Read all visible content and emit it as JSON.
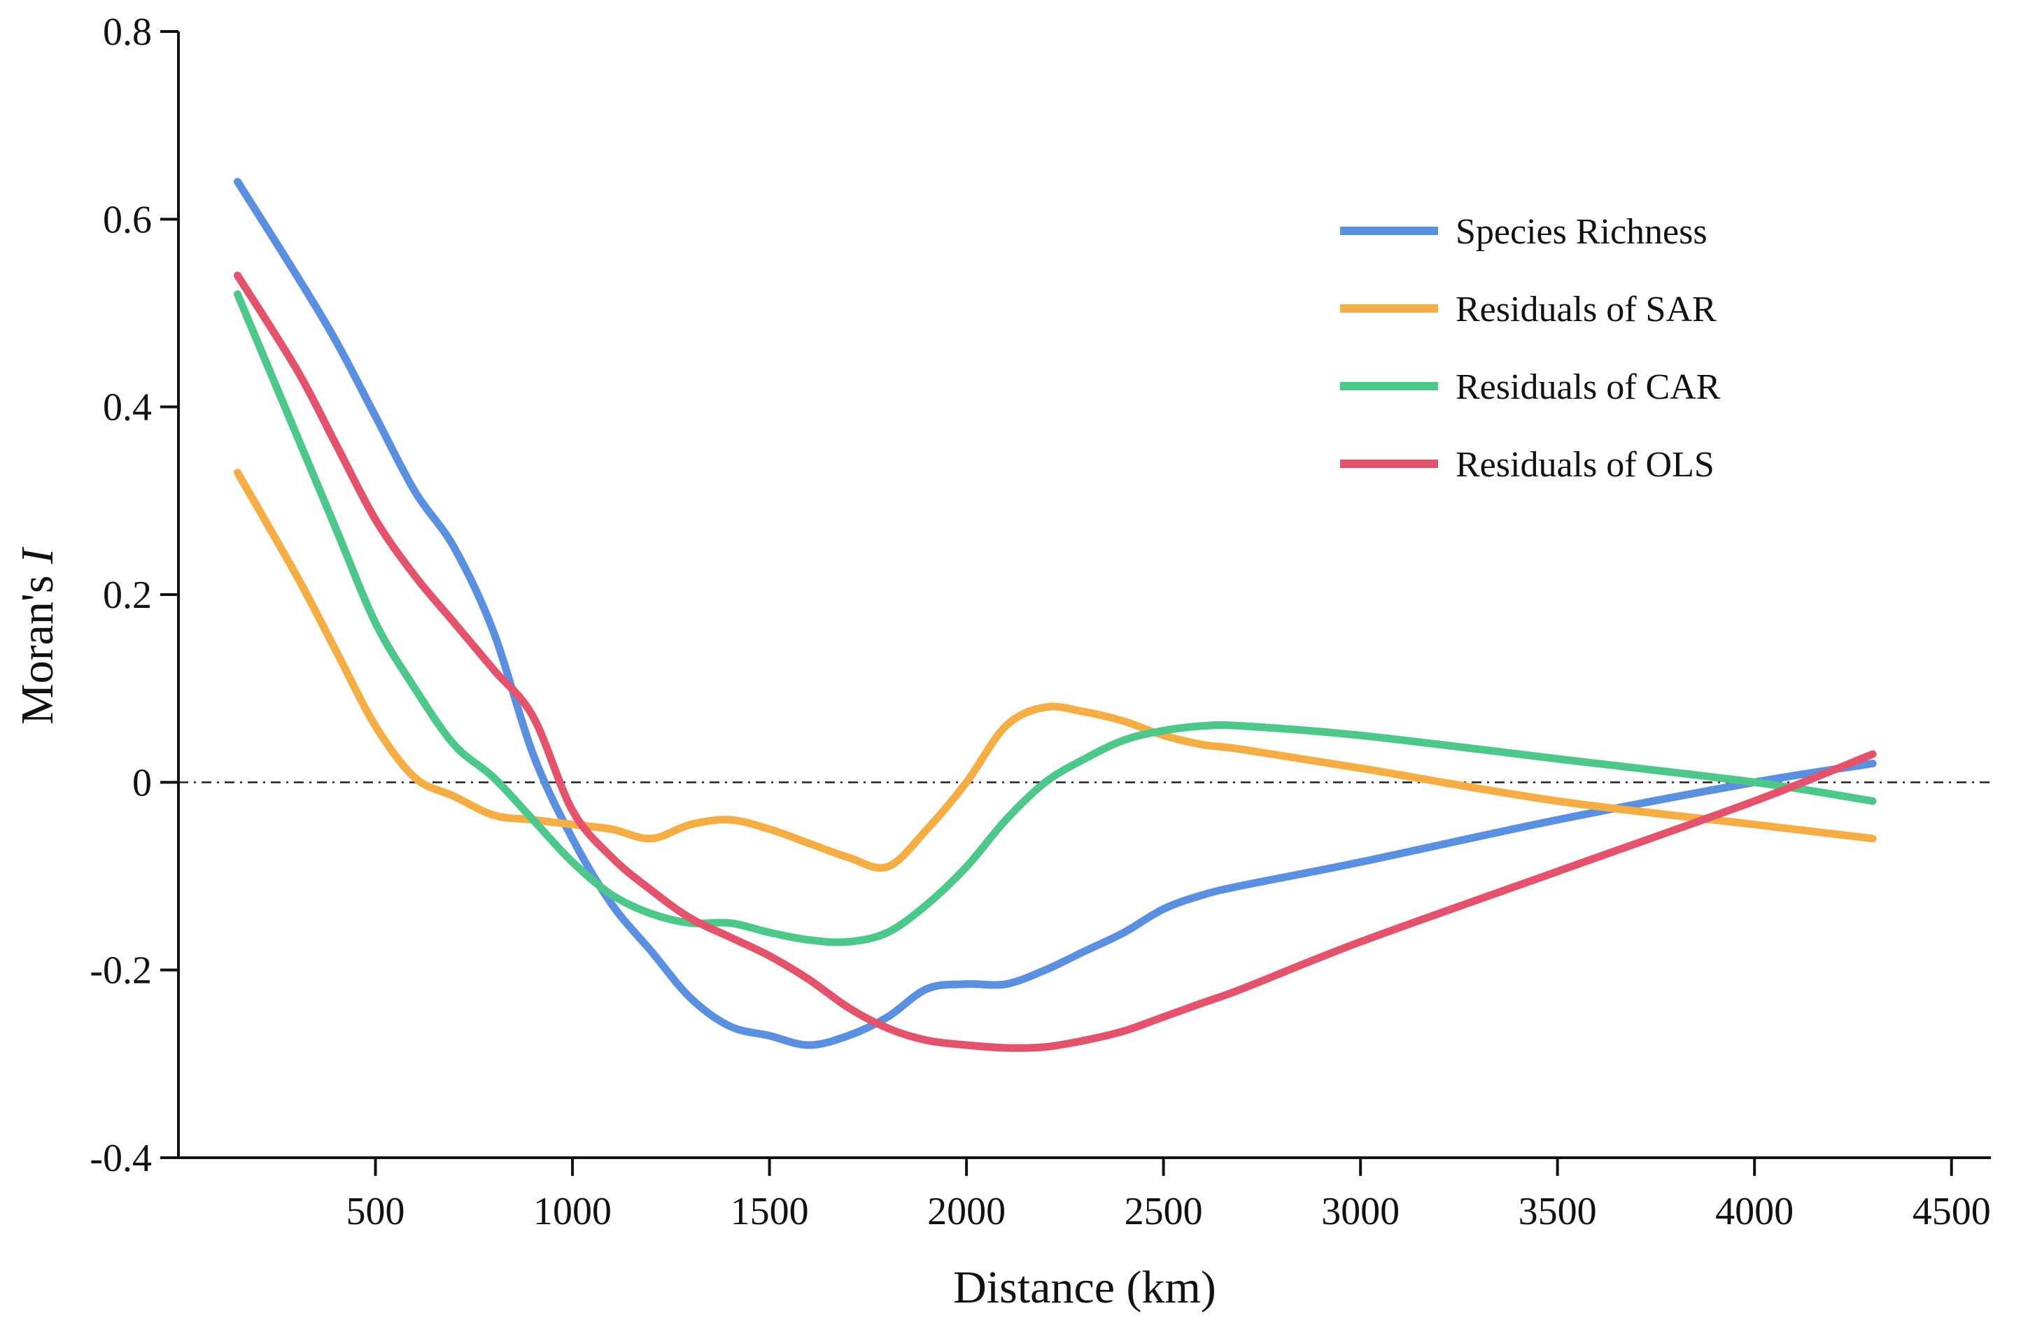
{
  "chart_data": {
    "type": "line",
    "title": "",
    "xlabel": "Distance (km)",
    "ylabel_text": "Moran's ",
    "ylabel_italic": "I",
    "xlim": [
      0,
      4600
    ],
    "ylim": [
      -0.4,
      0.8
    ],
    "x_ticks": [
      500,
      1000,
      1500,
      2000,
      2500,
      3000,
      3500,
      4000,
      4500
    ],
    "x_tick_labels": [
      "500",
      "1000",
      "1500",
      "2000",
      "2500",
      "3000",
      "3500",
      "4000",
      "4500"
    ],
    "y_ticks": [
      -0.4,
      -0.2,
      0,
      0.2,
      0.4,
      0.6,
      0.8
    ],
    "y_tick_labels": [
      "-0.4",
      "-0.2",
      "0",
      "0.2",
      "0.4",
      "0.6",
      "0.8"
    ],
    "reference_line": {
      "y": 0,
      "style": "dash-dot"
    },
    "legend_position": "top-right",
    "series": [
      {
        "name": "Species Richness",
        "color": "#5B8FE0",
        "x": [
          150,
          300,
          400,
          500,
          600,
          700,
          800,
          900,
          1000,
          1100,
          1200,
          1300,
          1400,
          1500,
          1600,
          1700,
          1800,
          1900,
          2000,
          2100,
          2200,
          2300,
          2400,
          2500,
          2600,
          2700,
          3000,
          3500,
          4000,
          4300
        ],
        "y": [
          0.64,
          0.54,
          0.47,
          0.39,
          0.31,
          0.25,
          0.16,
          0.03,
          -0.06,
          -0.13,
          -0.18,
          -0.23,
          -0.26,
          -0.27,
          -0.28,
          -0.27,
          -0.25,
          -0.22,
          -0.215,
          -0.215,
          -0.2,
          -0.18,
          -0.16,
          -0.135,
          -0.12,
          -0.11,
          -0.085,
          -0.04,
          0.0,
          0.02
        ]
      },
      {
        "name": "Residuals of SAR",
        "color": "#F5AE45",
        "x": [
          150,
          300,
          400,
          500,
          600,
          700,
          800,
          900,
          1000,
          1100,
          1200,
          1300,
          1400,
          1500,
          1600,
          1700,
          1800,
          1900,
          2000,
          2100,
          2200,
          2300,
          2400,
          2500,
          2600,
          2700,
          3000,
          3500,
          4000,
          4300
        ],
        "y": [
          0.33,
          0.22,
          0.14,
          0.06,
          0.005,
          -0.015,
          -0.035,
          -0.04,
          -0.045,
          -0.05,
          -0.06,
          -0.045,
          -0.04,
          -0.05,
          -0.065,
          -0.08,
          -0.09,
          -0.05,
          0.0,
          0.06,
          0.08,
          0.075,
          0.065,
          0.05,
          0.04,
          0.035,
          0.015,
          -0.02,
          -0.045,
          -0.06
        ]
      },
      {
        "name": "Residuals of CAR",
        "color": "#4EC78B",
        "x": [
          150,
          300,
          400,
          500,
          600,
          700,
          800,
          900,
          1000,
          1100,
          1200,
          1300,
          1400,
          1500,
          1600,
          1700,
          1800,
          1900,
          2000,
          2100,
          2200,
          2300,
          2400,
          2500,
          2600,
          2700,
          3000,
          3500,
          4000,
          4300
        ],
        "y": [
          0.52,
          0.37,
          0.27,
          0.17,
          0.1,
          0.04,
          0.005,
          -0.04,
          -0.085,
          -0.12,
          -0.14,
          -0.15,
          -0.15,
          -0.16,
          -0.168,
          -0.17,
          -0.16,
          -0.13,
          -0.09,
          -0.04,
          0.0,
          0.025,
          0.045,
          0.055,
          0.06,
          0.06,
          0.05,
          0.025,
          0.0,
          -0.02
        ]
      },
      {
        "name": "Residuals of OLS",
        "color": "#E3536C",
        "x": [
          150,
          300,
          400,
          500,
          600,
          700,
          800,
          900,
          1000,
          1100,
          1200,
          1300,
          1400,
          1500,
          1600,
          1700,
          1800,
          1900,
          2000,
          2100,
          2200,
          2300,
          2400,
          2500,
          2600,
          2700,
          3000,
          3500,
          4000,
          4300
        ],
        "y": [
          0.54,
          0.44,
          0.36,
          0.28,
          0.22,
          0.17,
          0.12,
          0.07,
          -0.03,
          -0.08,
          -0.115,
          -0.145,
          -0.165,
          -0.185,
          -0.21,
          -0.24,
          -0.262,
          -0.275,
          -0.28,
          -0.283,
          -0.282,
          -0.275,
          -0.265,
          -0.25,
          -0.235,
          -0.22,
          -0.17,
          -0.095,
          -0.02,
          0.03
        ]
      }
    ]
  }
}
